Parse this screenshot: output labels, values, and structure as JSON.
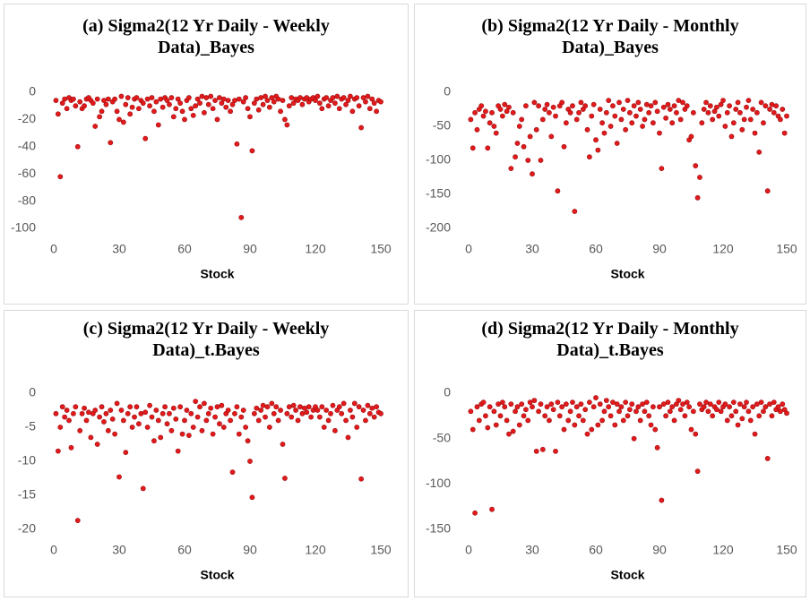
{
  "chart_data": [
    {
      "type": "scatter",
      "title": "(a) Sigma2(12 Yr Daily - Weekly Data)_Bayes",
      "x_label": "Stock",
      "color": "#e31a1c",
      "xlim": [
        0,
        150
      ],
      "xticks": [
        0,
        30,
        60,
        90,
        120,
        150
      ],
      "ylim": [
        -100,
        0
      ],
      "yticks": [
        -100,
        -80,
        -60,
        -40,
        -20,
        0
      ],
      "grid": false,
      "x": [
        1,
        2,
        3,
        4,
        5,
        6,
        7,
        8,
        9,
        10,
        11,
        12,
        13,
        14,
        15,
        16,
        17,
        18,
        19,
        20,
        21,
        22,
        23,
        24,
        25,
        26,
        27,
        28,
        29,
        30,
        31,
        32,
        33,
        34,
        35,
        36,
        37,
        38,
        39,
        40,
        41,
        42,
        43,
        44,
        45,
        46,
        47,
        48,
        49,
        50,
        51,
        52,
        53,
        54,
        55,
        56,
        57,
        58,
        59,
        60,
        61,
        62,
        63,
        64,
        65,
        66,
        67,
        68,
        69,
        70,
        71,
        72,
        73,
        74,
        75,
        76,
        77,
        78,
        79,
        80,
        81,
        82,
        83,
        84,
        85,
        86,
        87,
        88,
        89,
        90,
        91,
        92,
        93,
        94,
        95,
        96,
        97,
        98,
        99,
        100,
        101,
        102,
        103,
        104,
        105,
        106,
        107,
        108,
        109,
        110,
        111,
        112,
        113,
        114,
        115,
        116,
        117,
        118,
        119,
        120,
        121,
        122,
        123,
        124,
        125,
        126,
        127,
        128,
        129,
        130,
        131,
        132,
        133,
        134,
        135,
        136,
        137,
        138,
        139,
        140,
        141,
        142,
        143,
        144,
        145,
        146,
        147,
        148,
        149,
        150
      ],
      "values": [
        -6,
        -16,
        -62,
        -8,
        -5,
        -12,
        -4,
        -6,
        -5,
        -10,
        -40,
        -7,
        -12,
        -10,
        -5,
        -4,
        -6,
        -8,
        -25,
        -5,
        -18,
        -14,
        -6,
        -9,
        -5,
        -37,
        -7,
        -5,
        -14,
        -20,
        -3,
        -22,
        -9,
        -4,
        -16,
        -11,
        -5,
        -4,
        -12,
        -6,
        -8,
        -34,
        -5,
        -10,
        -4,
        -14,
        -7,
        -24,
        -5,
        -11,
        -4,
        -6,
        -9,
        -4,
        -18,
        -12,
        -5,
        -8,
        -14,
        -20,
        -6,
        -4,
        -12,
        -17,
        -10,
        -5,
        -8,
        -3,
        -15,
        -4,
        -9,
        -3,
        -12,
        -6,
        -20,
        -4,
        -8,
        -5,
        -11,
        -6,
        -14,
        -9,
        -6,
        -38,
        -5,
        -92,
        -7,
        -4,
        -12,
        -18,
        -43,
        -8,
        -5,
        -13,
        -4,
        -9,
        -3,
        -6,
        -11,
        -4,
        -7,
        -3,
        -5,
        -14,
        -6,
        -20,
        -24,
        -10,
        -4,
        -8,
        -5,
        -6,
        -4,
        -9,
        -5,
        -4,
        -7,
        -5,
        -4,
        -6,
        -3,
        -8,
        -12,
        -5,
        -4,
        -10,
        -6,
        -4,
        -8,
        -3,
        -12,
        -5,
        -4,
        -9,
        -6,
        -3,
        -14,
        -5,
        -4,
        -10,
        -26,
        -4,
        -7,
        -3,
        -12,
        -5,
        -8,
        -14,
        -6,
        -7
      ]
    },
    {
      "type": "scatter",
      "title": "(b) Sigma2(12 Yr Daily - Monthly Data)_Bayes",
      "x_label": "Stock",
      "color": "#e31a1c",
      "xlim": [
        0,
        150
      ],
      "xticks": [
        0,
        30,
        60,
        90,
        120,
        150
      ],
      "ylim": [
        -200,
        0
      ],
      "yticks": [
        -200,
        -150,
        -100,
        -50,
        0
      ],
      "grid": false,
      "x": [
        1,
        2,
        3,
        4,
        5,
        6,
        7,
        8,
        9,
        10,
        11,
        12,
        13,
        14,
        15,
        16,
        17,
        18,
        19,
        20,
        21,
        22,
        23,
        24,
        25,
        26,
        27,
        28,
        29,
        30,
        31,
        32,
        33,
        34,
        35,
        36,
        37,
        38,
        39,
        40,
        41,
        42,
        43,
        44,
        45,
        46,
        47,
        48,
        49,
        50,
        51,
        52,
        53,
        54,
        55,
        56,
        57,
        58,
        59,
        60,
        61,
        62,
        63,
        64,
        65,
        66,
        67,
        68,
        69,
        70,
        71,
        72,
        73,
        74,
        75,
        76,
        77,
        78,
        79,
        80,
        81,
        82,
        83,
        84,
        85,
        86,
        87,
        88,
        89,
        90,
        91,
        92,
        93,
        94,
        95,
        96,
        97,
        98,
        99,
        100,
        101,
        102,
        103,
        104,
        105,
        106,
        107,
        108,
        109,
        110,
        111,
        112,
        113,
        114,
        115,
        116,
        117,
        118,
        119,
        120,
        121,
        122,
        123,
        124,
        125,
        126,
        127,
        128,
        129,
        130,
        131,
        132,
        133,
        134,
        135,
        136,
        137,
        138,
        139,
        140,
        141,
        142,
        143,
        144,
        145,
        146,
        147,
        148,
        149,
        150
      ],
      "values": [
        -40,
        -82,
        -30,
        -55,
        -25,
        -20,
        -35,
        -28,
        -82,
        -45,
        -30,
        -50,
        -60,
        -20,
        -25,
        -35,
        -18,
        -28,
        -22,
        -112,
        -30,
        -95,
        -75,
        -50,
        -40,
        -80,
        -20,
        -100,
        -65,
        -120,
        -15,
        -55,
        -20,
        -100,
        -40,
        -25,
        -18,
        -30,
        -65,
        -22,
        -35,
        -145,
        -20,
        -15,
        -80,
        -45,
        -25,
        -30,
        -20,
        -175,
        -40,
        -30,
        -15,
        -25,
        -20,
        -55,
        -95,
        -35,
        -18,
        -70,
        -85,
        -25,
        -45,
        -60,
        -30,
        -12,
        -50,
        -20,
        -35,
        -75,
        -15,
        -40,
        -25,
        -55,
        -12,
        -30,
        -45,
        -20,
        -35,
        -15,
        -25,
        -50,
        -40,
        -18,
        -30,
        -20,
        -45,
        -15,
        -28,
        -60,
        -112,
        -22,
        -38,
        -18,
        -25,
        -45,
        -20,
        -30,
        -12,
        -40,
        -15,
        -25,
        -20,
        -70,
        -65,
        -30,
        -108,
        -155,
        -125,
        -45,
        -25,
        -15,
        -30,
        -20,
        -40,
        -28,
        -22,
        -35,
        -18,
        -12,
        -50,
        -30,
        -20,
        -65,
        -45,
        -25,
        -15,
        -30,
        -55,
        -40,
        -22,
        -12,
        -40,
        -25,
        -60,
        -30,
        -88,
        -15,
        -45,
        -20,
        -145,
        -25,
        -18,
        -30,
        -20,
        -35,
        -40,
        -25,
        -60,
        -35
      ]
    },
    {
      "type": "scatter",
      "title": "(c) Sigma2(12 Yr Daily - Weekly Data)_t.Bayes",
      "x_label": "Stock",
      "color": "#e31a1c",
      "xlim": [
        0,
        150
      ],
      "xticks": [
        0,
        30,
        60,
        90,
        120,
        150
      ],
      "ylim": [
        -20,
        0
      ],
      "yticks": [
        -20,
        -15,
        -10,
        -5,
        0
      ],
      "grid": false,
      "x": [
        1,
        2,
        3,
        4,
        5,
        6,
        7,
        8,
        9,
        10,
        11,
        12,
        13,
        14,
        15,
        16,
        17,
        18,
        19,
        20,
        21,
        22,
        23,
        24,
        25,
        26,
        27,
        28,
        29,
        30,
        31,
        32,
        33,
        34,
        35,
        36,
        37,
        38,
        39,
        40,
        41,
        42,
        43,
        44,
        45,
        46,
        47,
        48,
        49,
        50,
        51,
        52,
        53,
        54,
        55,
        56,
        57,
        58,
        59,
        60,
        61,
        62,
        63,
        64,
        65,
        66,
        67,
        68,
        69,
        70,
        71,
        72,
        73,
        74,
        75,
        76,
        77,
        78,
        79,
        80,
        81,
        82,
        83,
        84,
        85,
        86,
        87,
        88,
        89,
        90,
        91,
        92,
        93,
        94,
        95,
        96,
        97,
        98,
        99,
        100,
        101,
        102,
        103,
        104,
        105,
        106,
        107,
        108,
        109,
        110,
        111,
        112,
        113,
        114,
        115,
        116,
        117,
        118,
        119,
        120,
        121,
        122,
        123,
        124,
        125,
        126,
        127,
        128,
        129,
        130,
        131,
        132,
        133,
        134,
        135,
        136,
        137,
        138,
        139,
        140,
        141,
        142,
        143,
        144,
        145,
        146,
        147,
        148,
        149,
        150
      ],
      "values": [
        -3,
        -8.5,
        -5,
        -2,
        -3.5,
        -2.5,
        -4,
        -8,
        -3,
        -2,
        -18.7,
        -5.5,
        -3,
        -2.2,
        -4,
        -2.8,
        -6.5,
        -3,
        -2.5,
        -7.5,
        -3.5,
        -2,
        -4.2,
        -3,
        -5.5,
        -2.5,
        -3.8,
        -6,
        -1.5,
        -12.3,
        -2.5,
        -4,
        -8.7,
        -3,
        -2,
        -5,
        -3.5,
        -2,
        -4.5,
        -3,
        -14,
        -2.8,
        -5,
        -1.8,
        -3.5,
        -7,
        -2.5,
        -4,
        -6.5,
        -3,
        -2,
        -4.5,
        -3,
        -5.5,
        -2.2,
        -3.8,
        -8.5,
        -2,
        -6,
        -4,
        -2.5,
        -6.2,
        -3,
        -5,
        -1.2,
        -3.5,
        -2,
        -5.5,
        -1.5,
        -4,
        -3,
        -2.2,
        -6,
        -3.5,
        -2,
        -4.5,
        -1.8,
        -5,
        -3,
        -2.5,
        -4,
        -11.6,
        -3,
        -2,
        -6,
        -3.5,
        -2.5,
        -5,
        -7,
        -10,
        -15.3,
        -3,
        -2.2,
        -4,
        -2.5,
        -1.8,
        -3.5,
        -2,
        -5,
        -1.5,
        -3,
        -2,
        -4,
        -2.5,
        -7.5,
        -12.5,
        -3,
        -2,
        -3.5,
        -1.8,
        -2.5,
        -4,
        -2,
        -3,
        -2.2,
        -2.8,
        -2,
        -3.5,
        -2.5,
        -2,
        -2.5,
        -3.5,
        -2,
        -5,
        -2.5,
        -4,
        -3,
        -1.8,
        -5.5,
        -2.5,
        -2,
        -3,
        -1.5,
        -4,
        -6.5,
        -2.5,
        -3.5,
        -1.5,
        -5,
        -2,
        -12.6,
        -2.5,
        -4,
        -1.8,
        -3,
        -2.2,
        -3.5,
        -2,
        -2.8,
        -3
      ]
    },
    {
      "type": "scatter",
      "title": "(d) Sigma2(12 Yr Daily - Monthly Data)_t.Bayes",
      "x_label": "Stock",
      "color": "#e31a1c",
      "xlim": [
        0,
        150
      ],
      "xticks": [
        0,
        30,
        60,
        90,
        120,
        150
      ],
      "ylim": [
        -150,
        0
      ],
      "yticks": [
        -150,
        -100,
        -50,
        0
      ],
      "grid": false,
      "x": [
        1,
        2,
        3,
        4,
        5,
        6,
        7,
        8,
        9,
        10,
        11,
        12,
        13,
        14,
        15,
        16,
        17,
        18,
        19,
        20,
        21,
        22,
        23,
        24,
        25,
        26,
        27,
        28,
        29,
        30,
        31,
        32,
        33,
        34,
        35,
        36,
        37,
        38,
        39,
        40,
        41,
        42,
        43,
        44,
        45,
        46,
        47,
        48,
        49,
        50,
        51,
        52,
        53,
        54,
        55,
        56,
        57,
        58,
        59,
        60,
        61,
        62,
        63,
        64,
        65,
        66,
        67,
        68,
        69,
        70,
        71,
        72,
        73,
        74,
        75,
        76,
        77,
        78,
        79,
        80,
        81,
        82,
        83,
        84,
        85,
        86,
        87,
        88,
        89,
        90,
        91,
        92,
        93,
        94,
        95,
        96,
        97,
        98,
        99,
        100,
        101,
        102,
        103,
        104,
        105,
        106,
        107,
        108,
        109,
        110,
        111,
        112,
        113,
        114,
        115,
        116,
        117,
        118,
        119,
        120,
        121,
        122,
        123,
        124,
        125,
        126,
        127,
        128,
        129,
        130,
        131,
        132,
        133,
        134,
        135,
        136,
        137,
        138,
        139,
        140,
        141,
        142,
        143,
        144,
        145,
        146,
        147,
        148,
        149,
        150
      ],
      "values": [
        -20,
        -40,
        -132,
        -15,
        -30,
        -12,
        -10,
        -25,
        -38,
        -15,
        -128,
        -20,
        -35,
        -12,
        -25,
        -10,
        -15,
        -30,
        -45,
        -12,
        -42,
        -20,
        -15,
        -35,
        -12,
        -25,
        -18,
        -30,
        -10,
        -15,
        -8,
        -64,
        -20,
        -12,
        -62,
        -25,
        -15,
        -30,
        -12,
        -18,
        -64,
        -10,
        -25,
        -15,
        -40,
        -12,
        -30,
        -20,
        -10,
        -35,
        -15,
        -25,
        -12,
        -30,
        -18,
        -45,
        -10,
        -40,
        -15,
        -5,
        -35,
        -12,
        -30,
        -20,
        -8,
        -15,
        -25,
        -10,
        -35,
        -12,
        -20,
        -15,
        -30,
        -10,
        -25,
        -18,
        -12,
        -50,
        -20,
        -15,
        -30,
        -12,
        -20,
        -10,
        -25,
        -35,
        -15,
        -40,
        -60,
        -15,
        -118,
        -12,
        -25,
        -10,
        -20,
        -15,
        -30,
        -12,
        -8,
        -18,
        -12,
        -25,
        -10,
        -15,
        -40,
        -20,
        -45,
        -86,
        -12,
        -18,
        -15,
        -10,
        -20,
        -12,
        -25,
        -15,
        -18,
        -10,
        -20,
        -15,
        -12,
        -30,
        -15,
        -25,
        -10,
        -20,
        -35,
        -12,
        -28,
        -15,
        -10,
        -20,
        -30,
        -15,
        -45,
        -12,
        -25,
        -10,
        -20,
        -15,
        -72,
        -12,
        -25,
        -10,
        -18,
        -15,
        -20,
        -12,
        -18,
        -22
      ]
    }
  ]
}
